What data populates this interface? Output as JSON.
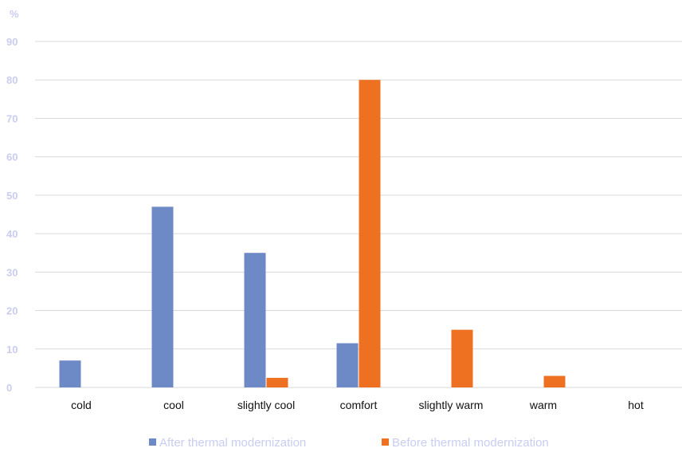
{
  "chart_data": {
    "type": "bar",
    "ylabel": "%",
    "ylim": [
      0,
      90
    ],
    "yticks": [
      0,
      10,
      20,
      30,
      40,
      50,
      60,
      70,
      80,
      90
    ],
    "grid": true,
    "legend_position": "bottom",
    "categories": [
      "cold",
      "cool",
      "slightly cool",
      "comfort",
      "slightly warm",
      "warm",
      "hot"
    ],
    "series": [
      {
        "name": "After thermal modernization",
        "color": "#6e8ac6",
        "values": [
          7,
          47,
          35,
          11.5,
          0,
          0,
          0
        ]
      },
      {
        "name": "Before thermal modernization",
        "color": "#ed7121",
        "values": [
          0,
          0,
          2.5,
          80,
          15,
          3,
          0
        ]
      }
    ]
  }
}
